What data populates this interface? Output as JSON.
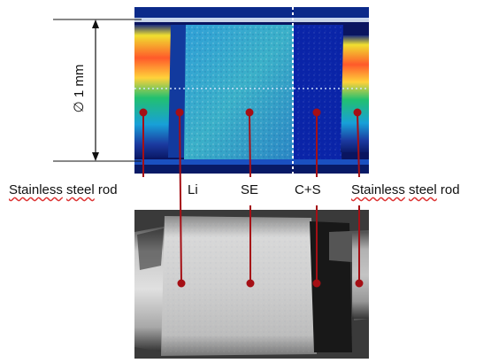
{
  "dimension_label": "∅ 1 mm",
  "labels": {
    "left": {
      "word1": "Stainless",
      "word2": "steel",
      "word3": "rod"
    },
    "li": "Li",
    "se": "SE",
    "cs": "C+S",
    "right": {
      "word1": "Stainless",
      "word2": "steel",
      "word3": "rod"
    }
  },
  "colors": {
    "marker": "#a50f15",
    "dimension_line": "#111111",
    "dashed_boundary": "#ffffff"
  }
}
